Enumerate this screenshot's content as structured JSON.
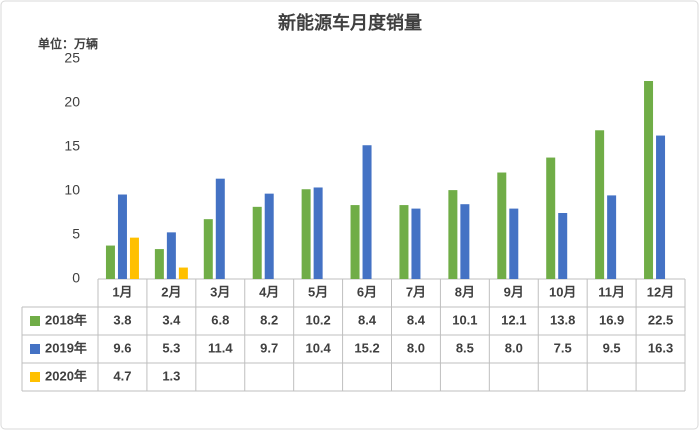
{
  "chart_data": {
    "type": "bar",
    "title": "新能源车月度销量",
    "unit_label": "单位：万辆",
    "categories": [
      "1月",
      "2月",
      "3月",
      "4月",
      "5月",
      "6月",
      "7月",
      "8月",
      "9月",
      "10月",
      "11月",
      "12月"
    ],
    "series": [
      {
        "name": "2018年",
        "color": "#70ad47",
        "values": [
          3.8,
          3.4,
          6.8,
          8.2,
          10.2,
          8.4,
          8.4,
          10.1,
          12.1,
          13.8,
          16.9,
          22.5
        ],
        "value_labels": [
          "3.8",
          "3.4",
          "6.8",
          "8.2",
          "10.2",
          "8.4",
          "8.4",
          "10.1",
          "12.1",
          "13.8",
          "16.9",
          "22.5"
        ]
      },
      {
        "name": "2019年",
        "color": "#4472c4",
        "values": [
          9.6,
          5.3,
          11.4,
          9.7,
          10.4,
          15.2,
          8.0,
          8.5,
          8.0,
          7.5,
          9.5,
          16.3
        ],
        "value_labels": [
          "9.6",
          "5.3",
          "11.4",
          "9.7",
          "10.4",
          "15.2",
          "8.0",
          "8.5",
          "8.0",
          "7.5",
          "9.5",
          "16.3"
        ]
      },
      {
        "name": "2020年",
        "color": "#ffc000",
        "values": [
          4.7,
          1.3,
          null,
          null,
          null,
          null,
          null,
          null,
          null,
          null,
          null,
          null
        ],
        "value_labels": [
          "4.7",
          "1.3",
          null,
          null,
          null,
          null,
          null,
          null,
          null,
          null,
          null,
          null
        ]
      }
    ],
    "ylim": [
      0,
      25
    ],
    "yticks": [
      0,
      5,
      10,
      15,
      20,
      25
    ],
    "grid": false
  }
}
